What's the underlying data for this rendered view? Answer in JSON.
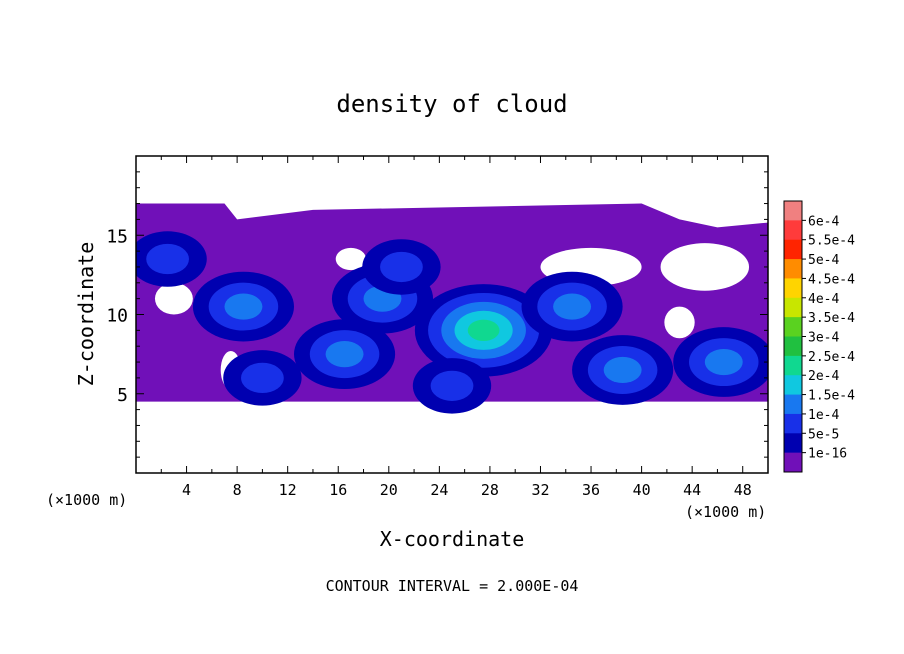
{
  "chart_data": {
    "type": "heatmap",
    "title": "density of cloud",
    "xlabel": "X-coordinate",
    "ylabel": "Z-coordinate",
    "x_unit_label_left": "(×1000 m)",
    "x_unit_label_right": "(×1000 m)",
    "footer": "CONTOUR INTERVAL = 2.000E-04",
    "xlim": [
      0,
      50
    ],
    "ylim": [
      0,
      20
    ],
    "x_ticks": [
      4,
      8,
      12,
      16,
      20,
      24,
      28,
      32,
      36,
      40,
      44,
      48
    ],
    "x_tick_labels": [
      "4",
      "8",
      "12",
      "16",
      "20",
      "24",
      "28",
      "32",
      "36",
      "40",
      "44",
      "48"
    ],
    "y_ticks": [
      5,
      10,
      15
    ],
    "y_tick_labels": [
      "5",
      "10",
      "15"
    ],
    "colorbar": {
      "labels": [
        "6e-4",
        "5.5e-4",
        "5e-4",
        "4.5e-4",
        "4e-4",
        "3.5e-4",
        "3e-4",
        "2.5e-4",
        "2e-4",
        "1.5e-4",
        "1e-4",
        "5e-5",
        "1e-16"
      ],
      "colors": [
        "#f08080",
        "#ff3b3b",
        "#ff2400",
        "#ff8c00",
        "#ffd400",
        "#c8e600",
        "#5ad220",
        "#20c040",
        "#10d890",
        "#10c8e0",
        "#1878f0",
        "#1830e8",
        "#0000b0",
        "#7010b8"
      ]
    },
    "cloud_layer_z_range": [
      4.5,
      17
    ],
    "cloud_cells": [
      {
        "x": 27.5,
        "z": 9.0,
        "value": 0.00018
      },
      {
        "x": 38.5,
        "z": 6.5,
        "value": 0.0001
      },
      {
        "x": 46.5,
        "z": 7.0,
        "value": 0.0001
      },
      {
        "x": 34.5,
        "z": 10.5,
        "value": 0.0001
      },
      {
        "x": 8.5,
        "z": 10.5,
        "value": 0.0001
      },
      {
        "x": 19.5,
        "z": 11.0,
        "value": 0.0001
      },
      {
        "x": 16.5,
        "z": 7.5,
        "value": 0.0001
      },
      {
        "x": 2.5,
        "z": 13.5,
        "value": 5e-05
      },
      {
        "x": 21.0,
        "z": 13.0,
        "value": 5e-05
      },
      {
        "x": 10.0,
        "z": 6.0,
        "value": 5e-05
      },
      {
        "x": 25.0,
        "z": 5.5,
        "value": 5e-05
      }
    ]
  }
}
